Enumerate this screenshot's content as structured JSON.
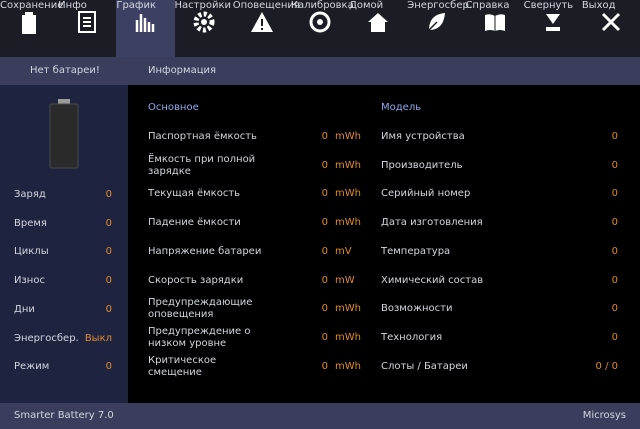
{
  "toolbar": {
    "items": [
      "Сохранение",
      "Инфо",
      "График",
      "Настройки",
      "Оповещения",
      "Калибровка",
      "Домой",
      "Энергосбер.",
      "Справка",
      "Свернуть",
      "Выход"
    ],
    "active": 2
  },
  "subheader": {
    "left": "Нет батареи!",
    "right": "Информация"
  },
  "left_panel": {
    "rows": [
      [
        "Заряд",
        0
      ],
      [
        "Время",
        0
      ],
      [
        "Циклы",
        0
      ],
      [
        "Износ",
        0
      ],
      [
        "Дни",
        0
      ],
      [
        "Энергосбер.",
        "Выкл"
      ],
      [
        "Режим",
        0
      ]
    ]
  },
  "basic": {
    "heading": "Основное",
    "rows": [
      [
        "Паспортная ёмкость",
        0,
        "mWh"
      ],
      [
        "Ёмкость при полной зарядке",
        0,
        "mWh"
      ],
      [
        "Текущая ёмкость",
        0,
        "mWh"
      ],
      [
        "Падение ёмкости",
        0,
        "mWh"
      ],
      [
        "Напряжение батареи",
        0,
        "mV"
      ],
      [
        "Скорость зарядки",
        0,
        "mW"
      ],
      [
        "Предупреждающие оповещения",
        0,
        "mWh"
      ],
      [
        "Предупреждение о низком уровне",
        0,
        "mWh"
      ],
      [
        "Критическое смещение",
        0,
        "mWh"
      ]
    ]
  },
  "model": {
    "heading": "Модель",
    "rows": [
      [
        "Имя устройства",
        0
      ],
      [
        "Производитель",
        0
      ],
      [
        "Серийный номер",
        0
      ],
      [
        "Дата изготовления",
        0
      ],
      [
        "Температура",
        0
      ],
      [
        "Химический состав",
        0
      ],
      [
        "Возможности",
        0
      ],
      [
        "Технология",
        0
      ],
      [
        "Слоты / Батареи",
        "0 / 0"
      ]
    ]
  },
  "footer": {
    "left": "Smarter Battery 7.0",
    "right": "Microsys"
  }
}
